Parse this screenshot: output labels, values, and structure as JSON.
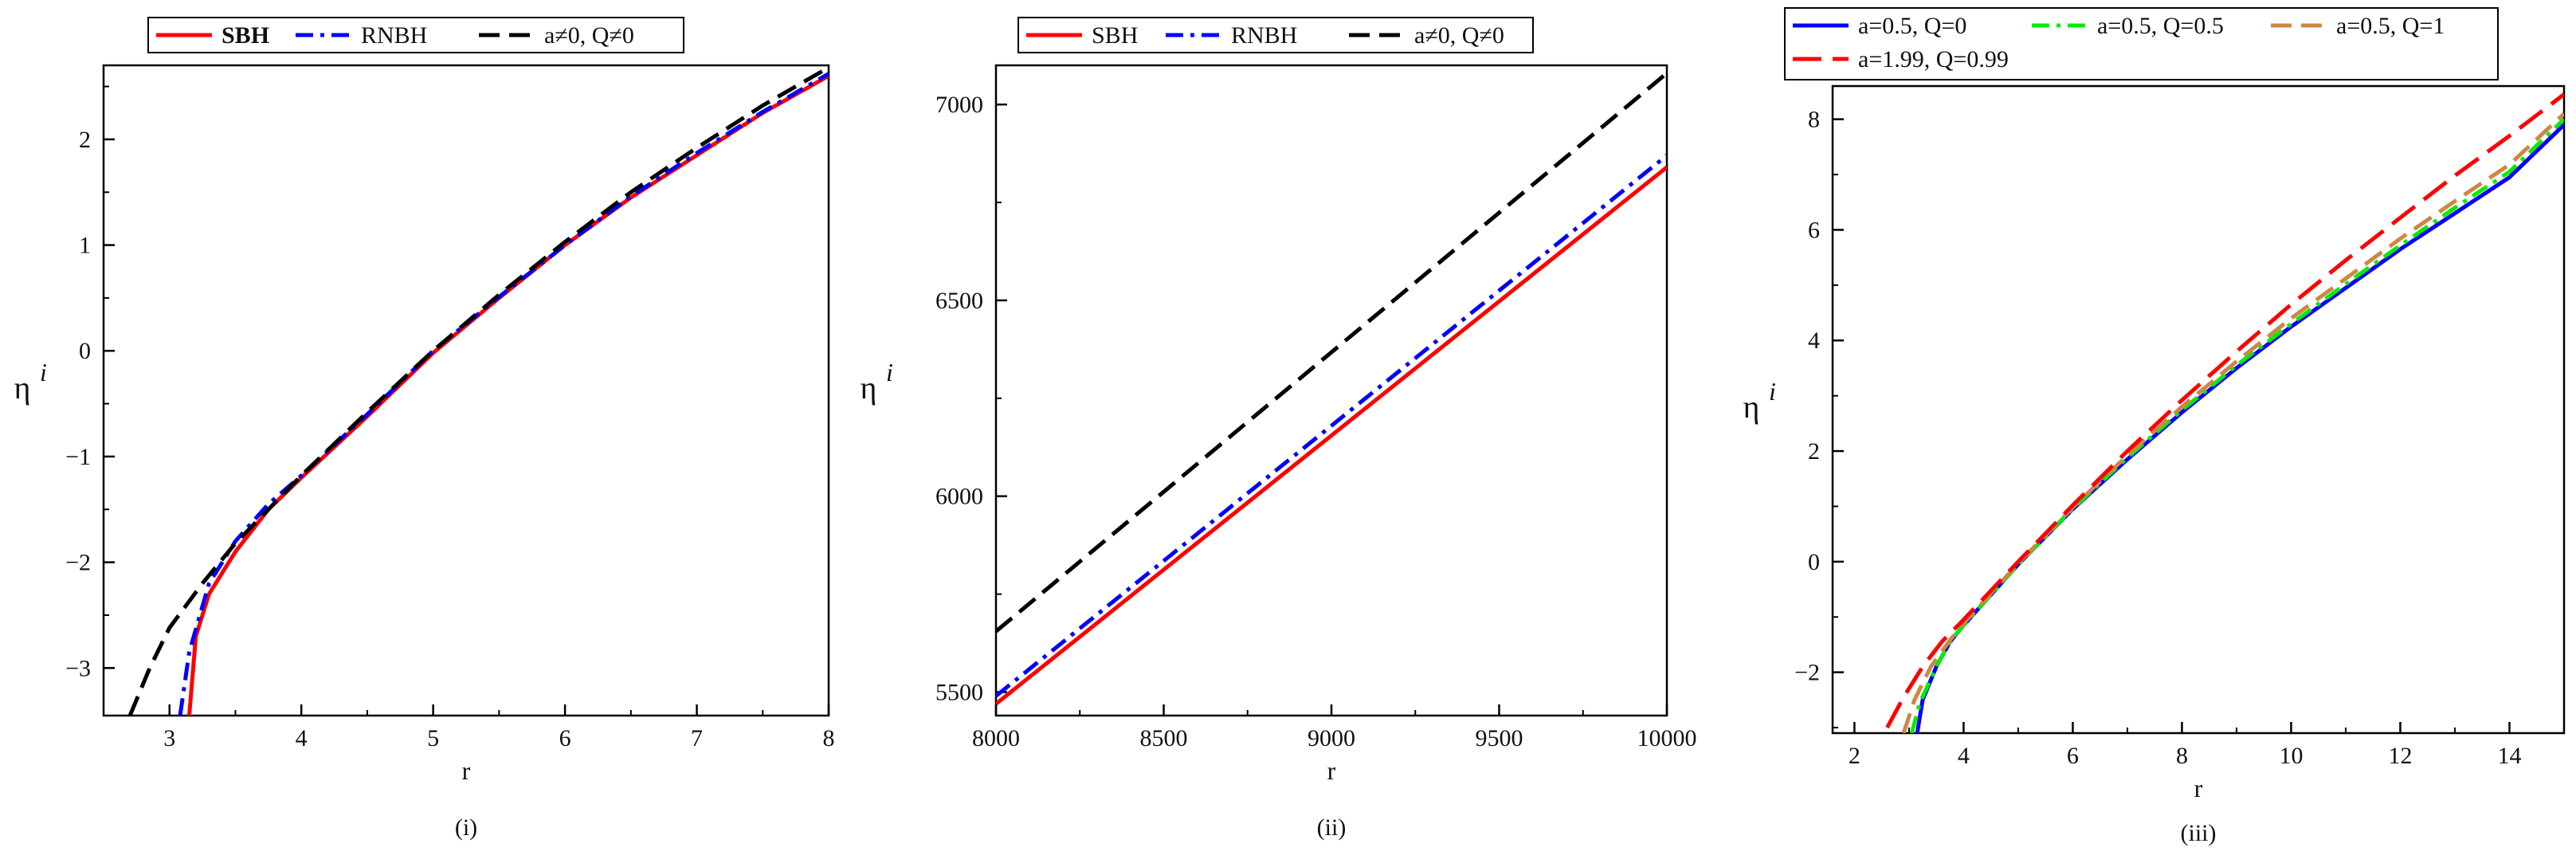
{
  "chart_data": [
    {
      "type": "line",
      "panel_label": "(i)",
      "xlabel": "r",
      "ylabel": "η",
      "ylabel_sup": "i",
      "xlim": [
        2.5,
        8.0
      ],
      "ylim": [
        -3.45,
        2.7
      ],
      "x_ticks": [
        3,
        4,
        5,
        6,
        7,
        8
      ],
      "x_tick_labels": [
        "3",
        "4",
        "5",
        "6",
        "7",
        "8"
      ],
      "y_ticks": [
        -3,
        -2,
        -1,
        0,
        1,
        2
      ],
      "y_tick_labels": [
        "−3",
        "−2",
        "−1",
        "0",
        "1",
        "2"
      ],
      "grid": false,
      "legend_position": "top",
      "series": [
        {
          "name": "SBH",
          "color": "#ff0000",
          "dash": "solid",
          "bold": true,
          "x": [
            3.15,
            3.2,
            3.3,
            3.5,
            3.75,
            4.0,
            4.5,
            5.0,
            5.5,
            6.0,
            6.5,
            7.0,
            7.5,
            8.0
          ],
          "y": [
            -3.45,
            -2.7,
            -2.3,
            -1.9,
            -1.5,
            -1.2,
            -0.62,
            -0.02,
            0.5,
            1.0,
            1.45,
            1.85,
            2.25,
            2.6
          ]
        },
        {
          "name": "RNBH",
          "color": "#0000ff",
          "dash": "dashdot",
          "x": [
            3.08,
            3.15,
            3.3,
            3.5,
            3.75,
            4.0,
            4.5,
            5.0,
            5.5,
            6.0,
            6.5,
            7.0,
            7.5,
            8.0
          ],
          "y": [
            -3.45,
            -2.85,
            -2.2,
            -1.8,
            -1.45,
            -1.18,
            -0.6,
            0.0,
            0.51,
            1.0,
            1.46,
            1.87,
            2.26,
            2.62
          ]
        },
        {
          "name": "a≠0, Q≠0",
          "color": "#000000",
          "dash": "dash",
          "x": [
            2.7,
            2.85,
            3.0,
            3.25,
            3.5,
            4.0,
            4.5,
            5.0,
            5.5,
            6.0,
            6.5,
            7.0,
            7.5,
            8.0
          ],
          "y": [
            -3.45,
            -3.0,
            -2.62,
            -2.2,
            -1.82,
            -1.18,
            -0.58,
            0.0,
            0.53,
            1.03,
            1.5,
            1.92,
            2.32,
            2.68
          ]
        }
      ]
    },
    {
      "type": "line",
      "panel_label": "(ii)",
      "xlabel": "r",
      "ylabel": "η",
      "ylabel_sup": "i",
      "xlim": [
        8000,
        10000
      ],
      "ylim": [
        5440,
        7100
      ],
      "x_ticks": [
        8000,
        8500,
        9000,
        9500,
        10000
      ],
      "x_tick_labels": [
        "8000",
        "8500",
        "9000",
        "9500",
        "10000"
      ],
      "y_ticks": [
        5500,
        6000,
        6500,
        7000
      ],
      "y_tick_labels": [
        "5500",
        "6000",
        "6500",
        "7000"
      ],
      "grid": false,
      "legend_position": "top",
      "series": [
        {
          "name": "SBH",
          "color": "#ff0000",
          "dash": "solid",
          "x": [
            8000,
            10000
          ],
          "y": [
            5470,
            6840
          ]
        },
        {
          "name": "RNBH",
          "color": "#0000ff",
          "dash": "dashdot",
          "x": [
            8000,
            10000
          ],
          "y": [
            5490,
            6870
          ]
        },
        {
          "name": "a≠0, Q≠0",
          "color": "#000000",
          "dash": "dash",
          "x": [
            8000,
            10000
          ],
          "y": [
            5655,
            7080
          ]
        }
      ]
    },
    {
      "type": "line",
      "panel_label": "(iii)",
      "xlabel": "r",
      "ylabel": "η",
      "ylabel_sup": "i",
      "xlim": [
        1.6,
        15.0
      ],
      "ylim": [
        -3.1,
        8.6
      ],
      "x_ticks": [
        2,
        4,
        6,
        8,
        10,
        12,
        14
      ],
      "x_tick_labels": [
        "2",
        "4",
        "6",
        "8",
        "10",
        "12",
        "14"
      ],
      "y_ticks": [
        -2,
        0,
        2,
        4,
        6,
        8
      ],
      "y_tick_labels": [
        "−2",
        "0",
        "2",
        "4",
        "6",
        "8"
      ],
      "grid": false,
      "legend_position": "top",
      "series": [
        {
          "name": "a=0.5, Q=0",
          "color": "#0000ff",
          "dash": "solid",
          "x": [
            3.15,
            3.25,
            3.5,
            3.75,
            4.0,
            5.0,
            6.0,
            7.0,
            8.0,
            9.0,
            10.0,
            11.0,
            12.0,
            13.0,
            14.0,
            15.0
          ],
          "y": [
            -3.1,
            -2.5,
            -1.9,
            -1.45,
            -1.15,
            -0.05,
            0.95,
            1.85,
            2.7,
            3.5,
            4.25,
            4.95,
            5.65,
            6.3,
            6.95,
            7.9
          ]
        },
        {
          "name": "a=0.5, Q=0.5",
          "color": "#00ee00",
          "dash": "dashdot",
          "x": [
            3.05,
            3.2,
            3.5,
            3.75,
            4.0,
            5.0,
            6.0,
            7.0,
            8.0,
            9.0,
            10.0,
            11.0,
            12.0,
            13.0,
            14.0,
            15.0
          ],
          "y": [
            -3.1,
            -2.55,
            -1.9,
            -1.45,
            -1.15,
            -0.05,
            0.96,
            1.88,
            2.74,
            3.55,
            4.3,
            5.02,
            5.72,
            6.4,
            7.05,
            8.0
          ]
        },
        {
          "name": "a=0.5, Q=1",
          "color": "#cc8844",
          "dash": "dash",
          "x": [
            2.9,
            3.1,
            3.4,
            3.75,
            4.0,
            5.0,
            6.0,
            7.0,
            8.0,
            9.0,
            10.0,
            11.0,
            12.0,
            13.0,
            14.0,
            15.0
          ],
          "y": [
            -3.1,
            -2.5,
            -1.9,
            -1.42,
            -1.12,
            -0.03,
            0.98,
            1.92,
            2.8,
            3.62,
            4.4,
            5.12,
            5.84,
            6.52,
            7.18,
            8.1
          ]
        },
        {
          "name": "a=1.99, Q=0.99",
          "color": "#ff0000",
          "dash": "longdash",
          "x": [
            2.6,
            2.9,
            3.25,
            3.6,
            4.0,
            5.0,
            6.0,
            7.0,
            8.0,
            9.0,
            10.0,
            11.0,
            12.0,
            13.0,
            14.0,
            15.0
          ],
          "y": [
            -3.0,
            -2.45,
            -1.9,
            -1.45,
            -1.05,
            0.0,
            1.02,
            2.0,
            2.92,
            3.8,
            4.65,
            5.45,
            6.22,
            6.98,
            7.7,
            8.45
          ]
        }
      ]
    }
  ]
}
